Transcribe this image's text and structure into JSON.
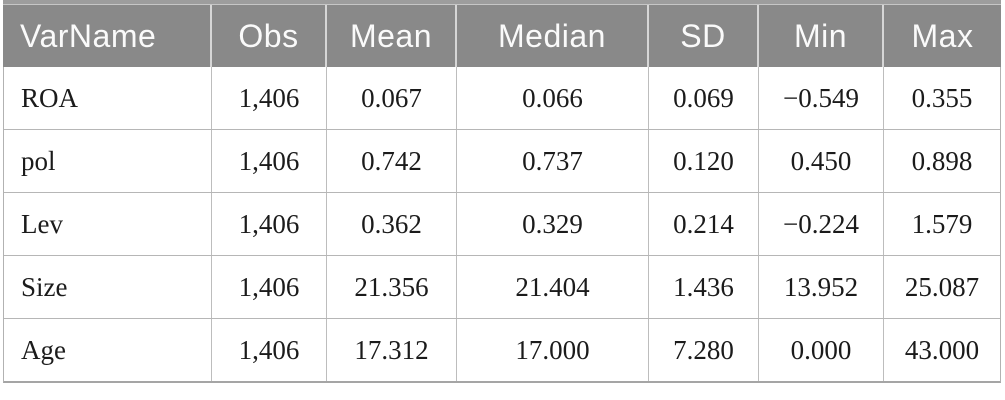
{
  "table": {
    "header": {
      "cells": [
        "VarName",
        "Obs",
        "Mean",
        "Median",
        "SD",
        "Min",
        "Max"
      ]
    },
    "rows": [
      {
        "cells": [
          "ROA",
          "1,406",
          "0.067",
          "0.066",
          "0.069",
          "−0.549",
          "0.355"
        ]
      },
      {
        "cells": [
          "pol",
          "1,406",
          "0.742",
          "0.737",
          "0.120",
          "0.450",
          "0.898"
        ]
      },
      {
        "cells": [
          "Lev",
          "1,406",
          "0.362",
          "0.329",
          "0.214",
          "−0.224",
          "1.579"
        ]
      },
      {
        "cells": [
          "Size",
          "1,406",
          "21.356",
          "21.404",
          "1.436",
          "13.952",
          "25.087"
        ]
      },
      {
        "cells": [
          "Age",
          "1,406",
          "17.312",
          "17.000",
          "7.280",
          "0.000",
          "43.000"
        ]
      }
    ],
    "colors": {
      "header_bg": "#898989",
      "header_text": "#fafafa",
      "header_separator": "#d6d6d6",
      "grid_line": "#b6b6b6",
      "bottom_rule": "#a5a5a5",
      "top_rule": "#9d9d9d",
      "body_text": "#1b1b1b"
    }
  }
}
